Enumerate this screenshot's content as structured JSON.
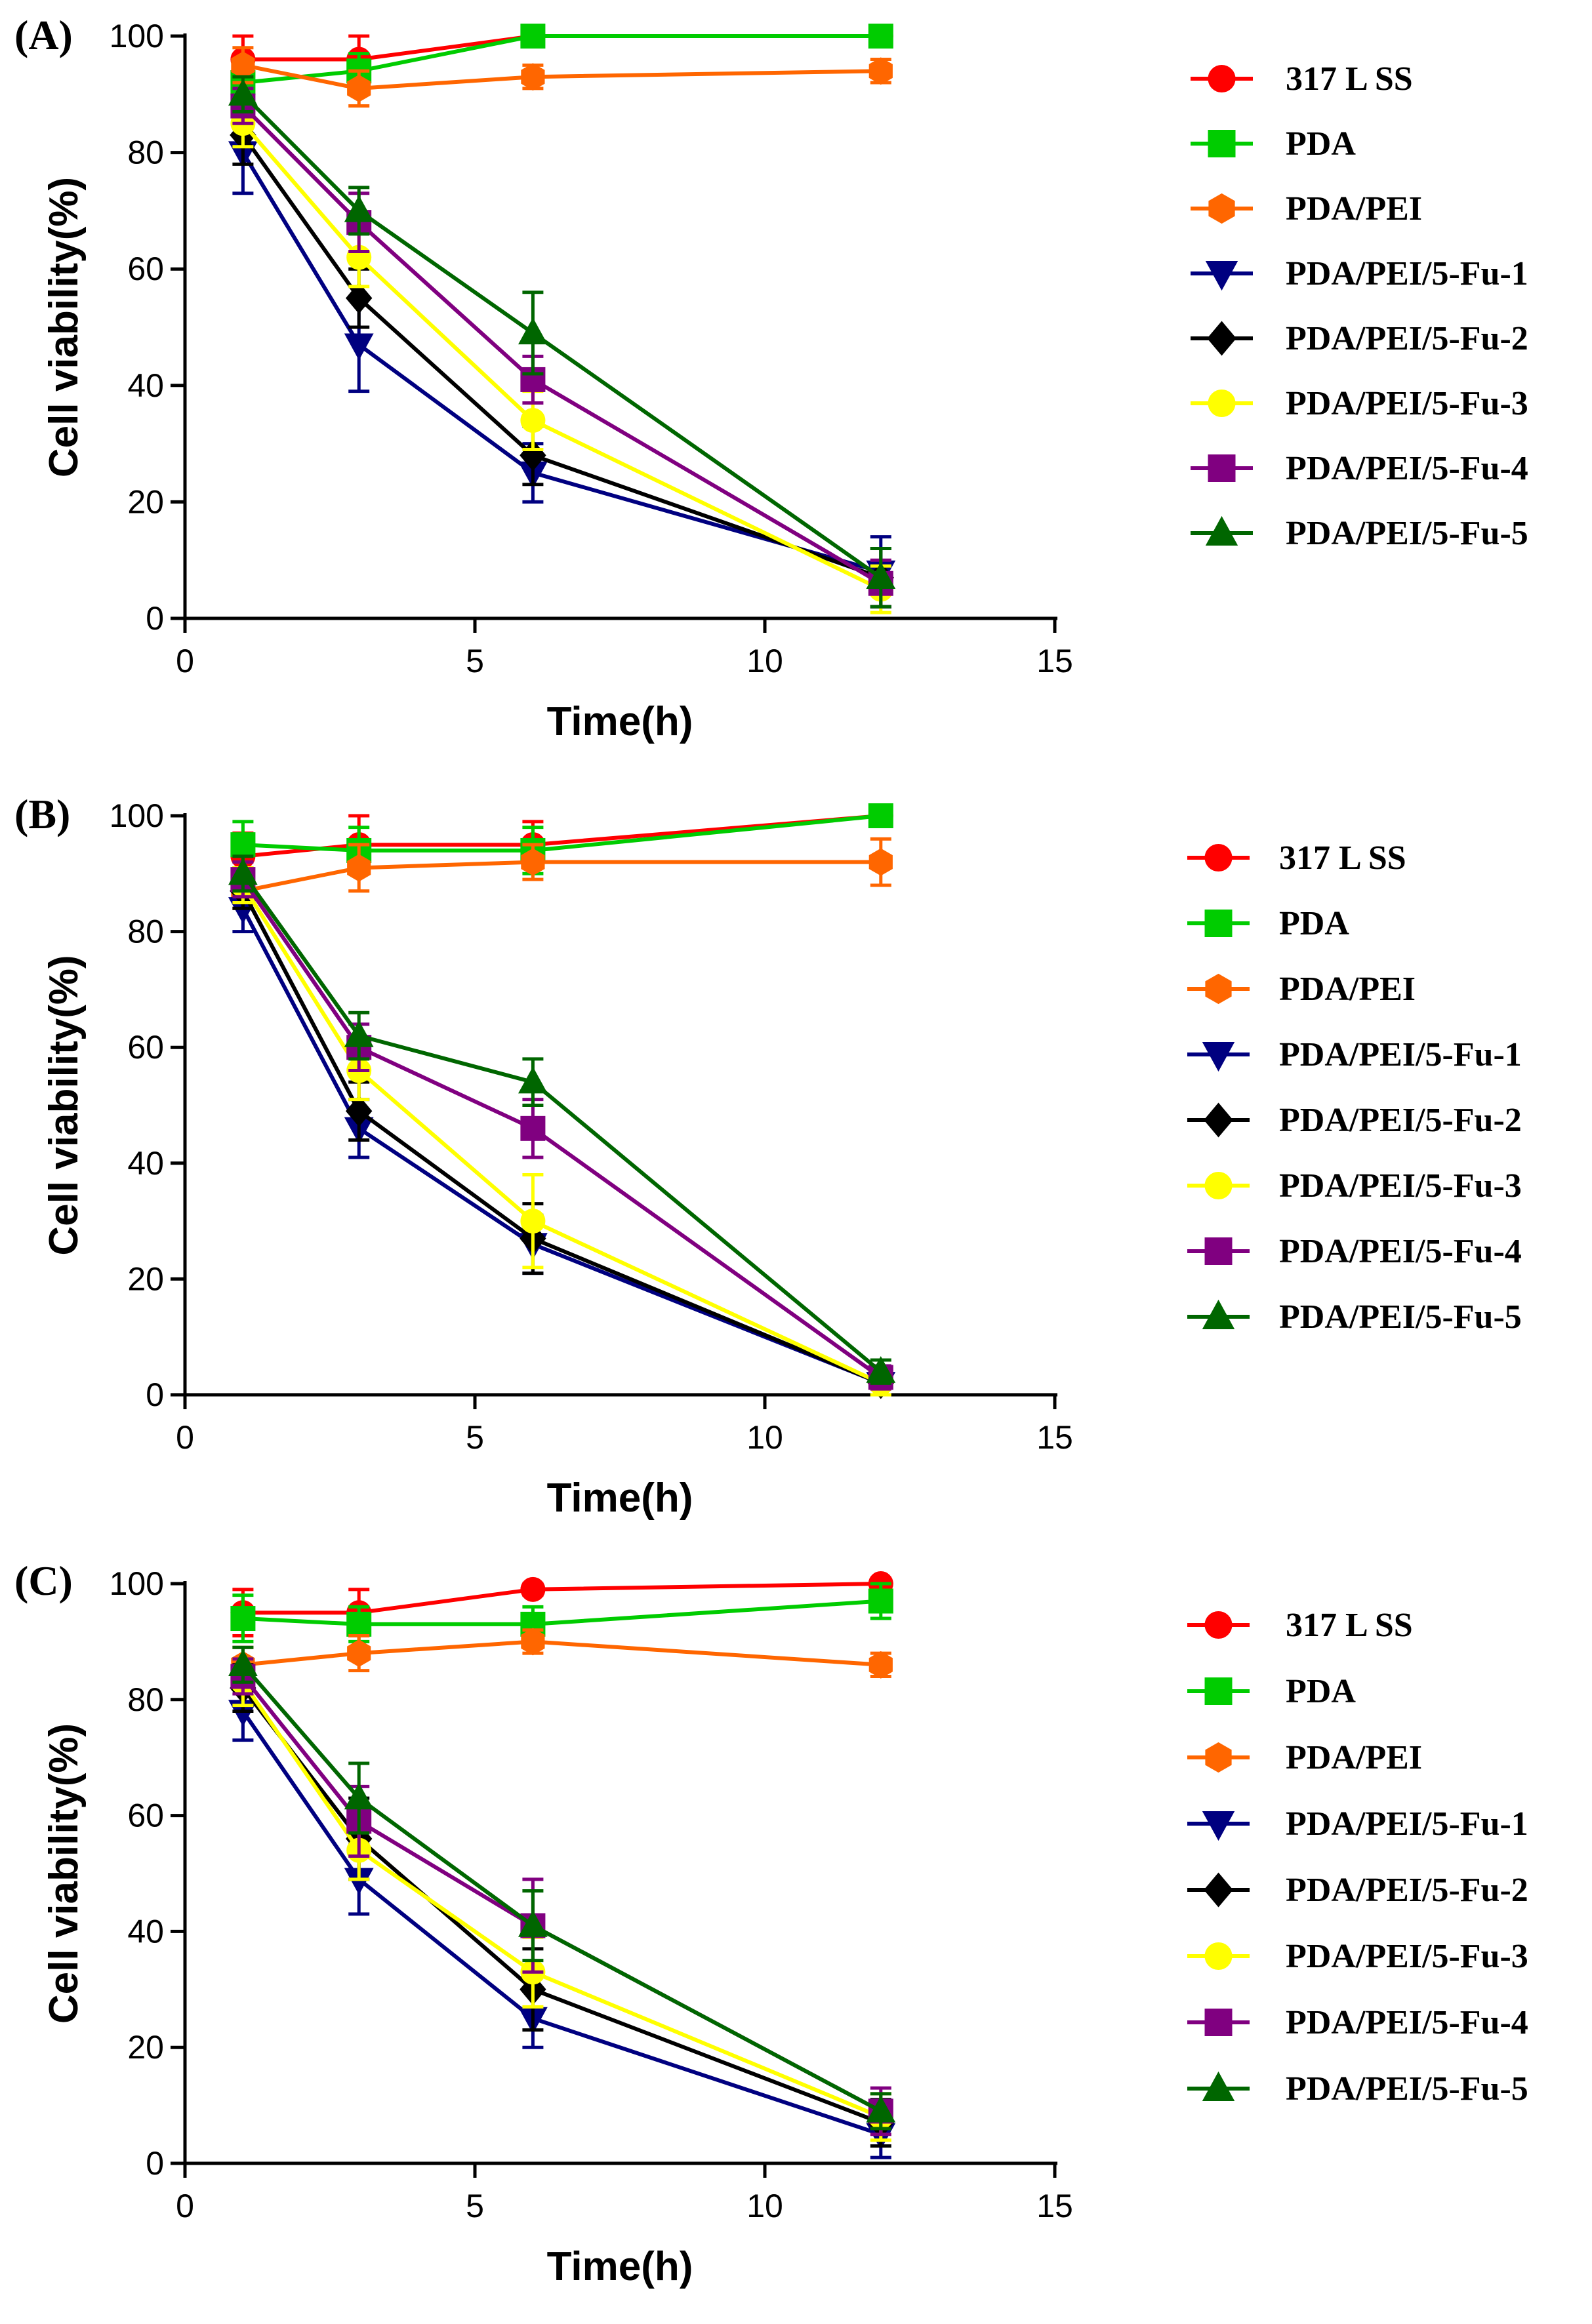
{
  "chart_data": [
    {
      "type": "line",
      "panel_label": "(A)",
      "xlabel": "Time(h)",
      "ylabel": "Cell viability(%)",
      "xlim": [
        0,
        15
      ],
      "ylim": [
        0,
        100
      ],
      "x_ticks": [
        0,
        5,
        10,
        15
      ],
      "y_ticks": [
        0,
        20,
        40,
        60,
        80,
        100
      ],
      "legend_position": "right",
      "x": [
        1,
        3,
        6,
        12
      ],
      "series": [
        {
          "name": "317 L SS",
          "color": "#ff0000",
          "marker": "circle",
          "values": [
            96,
            96,
            100,
            100
          ],
          "errors": [
            4,
            4,
            1,
            1
          ]
        },
        {
          "name": "PDA",
          "color": "#00cc00",
          "marker": "square",
          "values": [
            92,
            94,
            100,
            100
          ],
          "errors": [
            3,
            3,
            1,
            1
          ]
        },
        {
          "name": "PDA/PEI",
          "color": "#ff6600",
          "marker": "hexagon",
          "values": [
            95,
            91,
            93,
            94
          ],
          "errors": [
            3,
            3,
            2,
            2
          ]
        },
        {
          "name": "PDA/PEI/5-Fu-1",
          "color": "#000080",
          "marker": "triangle-down",
          "values": [
            80,
            47,
            25,
            8
          ],
          "errors": [
            7,
            8,
            5,
            6
          ]
        },
        {
          "name": "PDA/PEI/5-Fu-2",
          "color": "#000000",
          "marker": "diamond",
          "values": [
            83,
            55,
            28,
            7
          ],
          "errors": [
            5,
            5,
            5,
            5
          ]
        },
        {
          "name": "PDA/PEI/5-Fu-3",
          "color": "#ffff00",
          "marker": "circle",
          "values": [
            85,
            62,
            34,
            5
          ],
          "errors": [
            4,
            5,
            5,
            4
          ]
        },
        {
          "name": "PDA/PEI/5-Fu-4",
          "color": "#800080",
          "marker": "square",
          "values": [
            88,
            68,
            41,
            6
          ],
          "errors": [
            3,
            5,
            4,
            4
          ]
        },
        {
          "name": "PDA/PEI/5-Fu-5",
          "color": "#006600",
          "marker": "triangle-up",
          "values": [
            90,
            70,
            49,
            7
          ],
          "errors": [
            3,
            4,
            7,
            5
          ]
        }
      ]
    },
    {
      "type": "line",
      "panel_label": "(B)",
      "xlabel": "Time(h)",
      "ylabel": "Cell viability(%)",
      "xlim": [
        0,
        15
      ],
      "ylim": [
        0,
        100
      ],
      "x_ticks": [
        0,
        5,
        10,
        15
      ],
      "y_ticks": [
        0,
        20,
        40,
        60,
        80,
        100
      ],
      "legend_position": "right",
      "x": [
        1,
        3,
        6,
        12
      ],
      "series": [
        {
          "name": "317 L SS",
          "color": "#ff0000",
          "marker": "circle",
          "values": [
            93,
            95,
            95,
            100
          ],
          "errors": [
            4,
            5,
            4,
            1
          ]
        },
        {
          "name": "PDA",
          "color": "#00cc00",
          "marker": "square",
          "values": [
            95,
            94,
            94,
            100
          ],
          "errors": [
            4,
            4,
            4,
            1
          ]
        },
        {
          "name": "PDA/PEI",
          "color": "#ff6600",
          "marker": "hexagon",
          "values": [
            87,
            91,
            92,
            92
          ],
          "errors": [
            3,
            4,
            3,
            4
          ]
        },
        {
          "name": "PDA/PEI/5-Fu-1",
          "color": "#000080",
          "marker": "triangle-down",
          "values": [
            84,
            46,
            26,
            2
          ],
          "errors": [
            4,
            5,
            5,
            2
          ]
        },
        {
          "name": "PDA/PEI/5-Fu-2",
          "color": "#000000",
          "marker": "diamond",
          "values": [
            87,
            49,
            27,
            2
          ],
          "errors": [
            3,
            5,
            6,
            2
          ]
        },
        {
          "name": "PDA/PEI/5-Fu-3",
          "color": "#ffff00",
          "marker": "circle",
          "values": [
            88,
            56,
            30,
            2
          ],
          "errors": [
            3,
            5,
            8,
            2
          ]
        },
        {
          "name": "PDA/PEI/5-Fu-4",
          "color": "#800080",
          "marker": "square",
          "values": [
            89,
            60,
            46,
            3
          ],
          "errors": [
            3,
            4,
            5,
            2
          ]
        },
        {
          "name": "PDA/PEI/5-Fu-5",
          "color": "#006600",
          "marker": "triangle-up",
          "values": [
            90,
            62,
            54,
            4
          ],
          "errors": [
            3,
            4,
            4,
            2
          ]
        }
      ]
    },
    {
      "type": "line",
      "panel_label": "(C)",
      "xlabel": "Time(h)",
      "ylabel": "Cell viability(%)",
      "xlim": [
        0,
        15
      ],
      "ylim": [
        0,
        100
      ],
      "x_ticks": [
        0,
        5,
        10,
        15
      ],
      "y_ticks": [
        0,
        20,
        40,
        60,
        80,
        100
      ],
      "legend_position": "right",
      "x": [
        1,
        3,
        6,
        12
      ],
      "series": [
        {
          "name": "317 L SS",
          "color": "#ff0000",
          "marker": "circle",
          "values": [
            95,
            95,
            99,
            100
          ],
          "errors": [
            4,
            4,
            1,
            1
          ]
        },
        {
          "name": "PDA",
          "color": "#00cc00",
          "marker": "square",
          "values": [
            94,
            93,
            93,
            97
          ],
          "errors": [
            4,
            3,
            3,
            3
          ]
        },
        {
          "name": "PDA/PEI",
          "color": "#ff6600",
          "marker": "hexagon",
          "values": [
            86,
            88,
            90,
            86
          ],
          "errors": [
            3,
            3,
            2,
            2
          ]
        },
        {
          "name": "PDA/PEI/5-Fu-1",
          "color": "#000080",
          "marker": "triangle-down",
          "values": [
            78,
            49,
            25,
            5
          ],
          "errors": [
            5,
            6,
            5,
            4
          ]
        },
        {
          "name": "PDA/PEI/5-Fu-2",
          "color": "#000000",
          "marker": "diamond",
          "values": [
            82,
            56,
            30,
            7
          ],
          "errors": [
            4,
            7,
            7,
            4
          ]
        },
        {
          "name": "PDA/PEI/5-Fu-3",
          "color": "#ffff00",
          "marker": "circle",
          "values": [
            83,
            54,
            33,
            8
          ],
          "errors": [
            4,
            5,
            6,
            4
          ]
        },
        {
          "name": "PDA/PEI/5-Fu-4",
          "color": "#800080",
          "marker": "square",
          "values": [
            84,
            59,
            41,
            9
          ],
          "errors": [
            3,
            6,
            8,
            4
          ]
        },
        {
          "name": "PDA/PEI/5-Fu-5",
          "color": "#006600",
          "marker": "triangle-up",
          "values": [
            86,
            63,
            41,
            9
          ],
          "errors": [
            3,
            6,
            6,
            3
          ]
        }
      ]
    }
  ]
}
